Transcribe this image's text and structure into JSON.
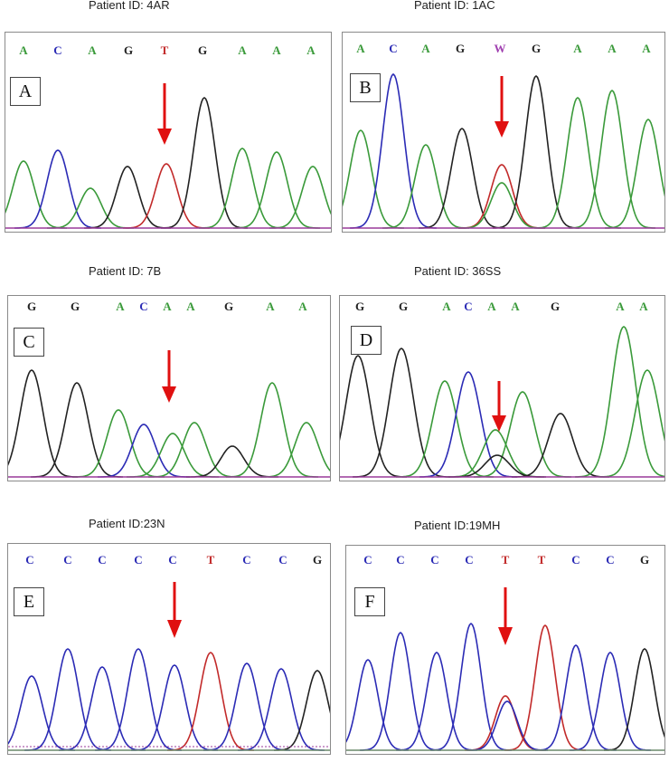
{
  "colors": {
    "A": "#3a9a3a",
    "C": "#2b2bb5",
    "G": "#222222",
    "T": "#c22a2a",
    "W": "#a040b0",
    "arrow": "#e01010",
    "baseline": "#9a3a9a"
  },
  "panels": [
    {
      "label": "A",
      "patient": "Patient ID: 4AR",
      "bases": [
        "A",
        "C",
        "A",
        "G",
        "T",
        "G",
        "A",
        "A",
        "A"
      ]
    },
    {
      "label": "B",
      "patient": "Patient ID: 1AC",
      "bases": [
        "A",
        "C",
        "A",
        "G",
        "W",
        "G",
        "A",
        "A",
        "A"
      ]
    },
    {
      "label": "C",
      "patient": "Patient ID: 7B",
      "bases": [
        "G",
        "G",
        "A",
        "C",
        "A",
        "A",
        "G",
        "A",
        "A"
      ]
    },
    {
      "label": "D",
      "patient": "Patient ID: 36SS",
      "bases": [
        "G",
        "G",
        "A",
        "C",
        "A",
        "A",
        "G",
        "A",
        "A"
      ]
    },
    {
      "label": "E",
      "patient": "Patient ID:23N",
      "bases": [
        "C",
        "C",
        "C",
        "C",
        "C",
        "T",
        "C",
        "C",
        "G"
      ]
    },
    {
      "label": "F",
      "patient": "Patient ID:19MH",
      "bases": [
        "C",
        "C",
        "C",
        "C",
        "T",
        "T",
        "C",
        "C",
        "G"
      ]
    }
  ]
}
